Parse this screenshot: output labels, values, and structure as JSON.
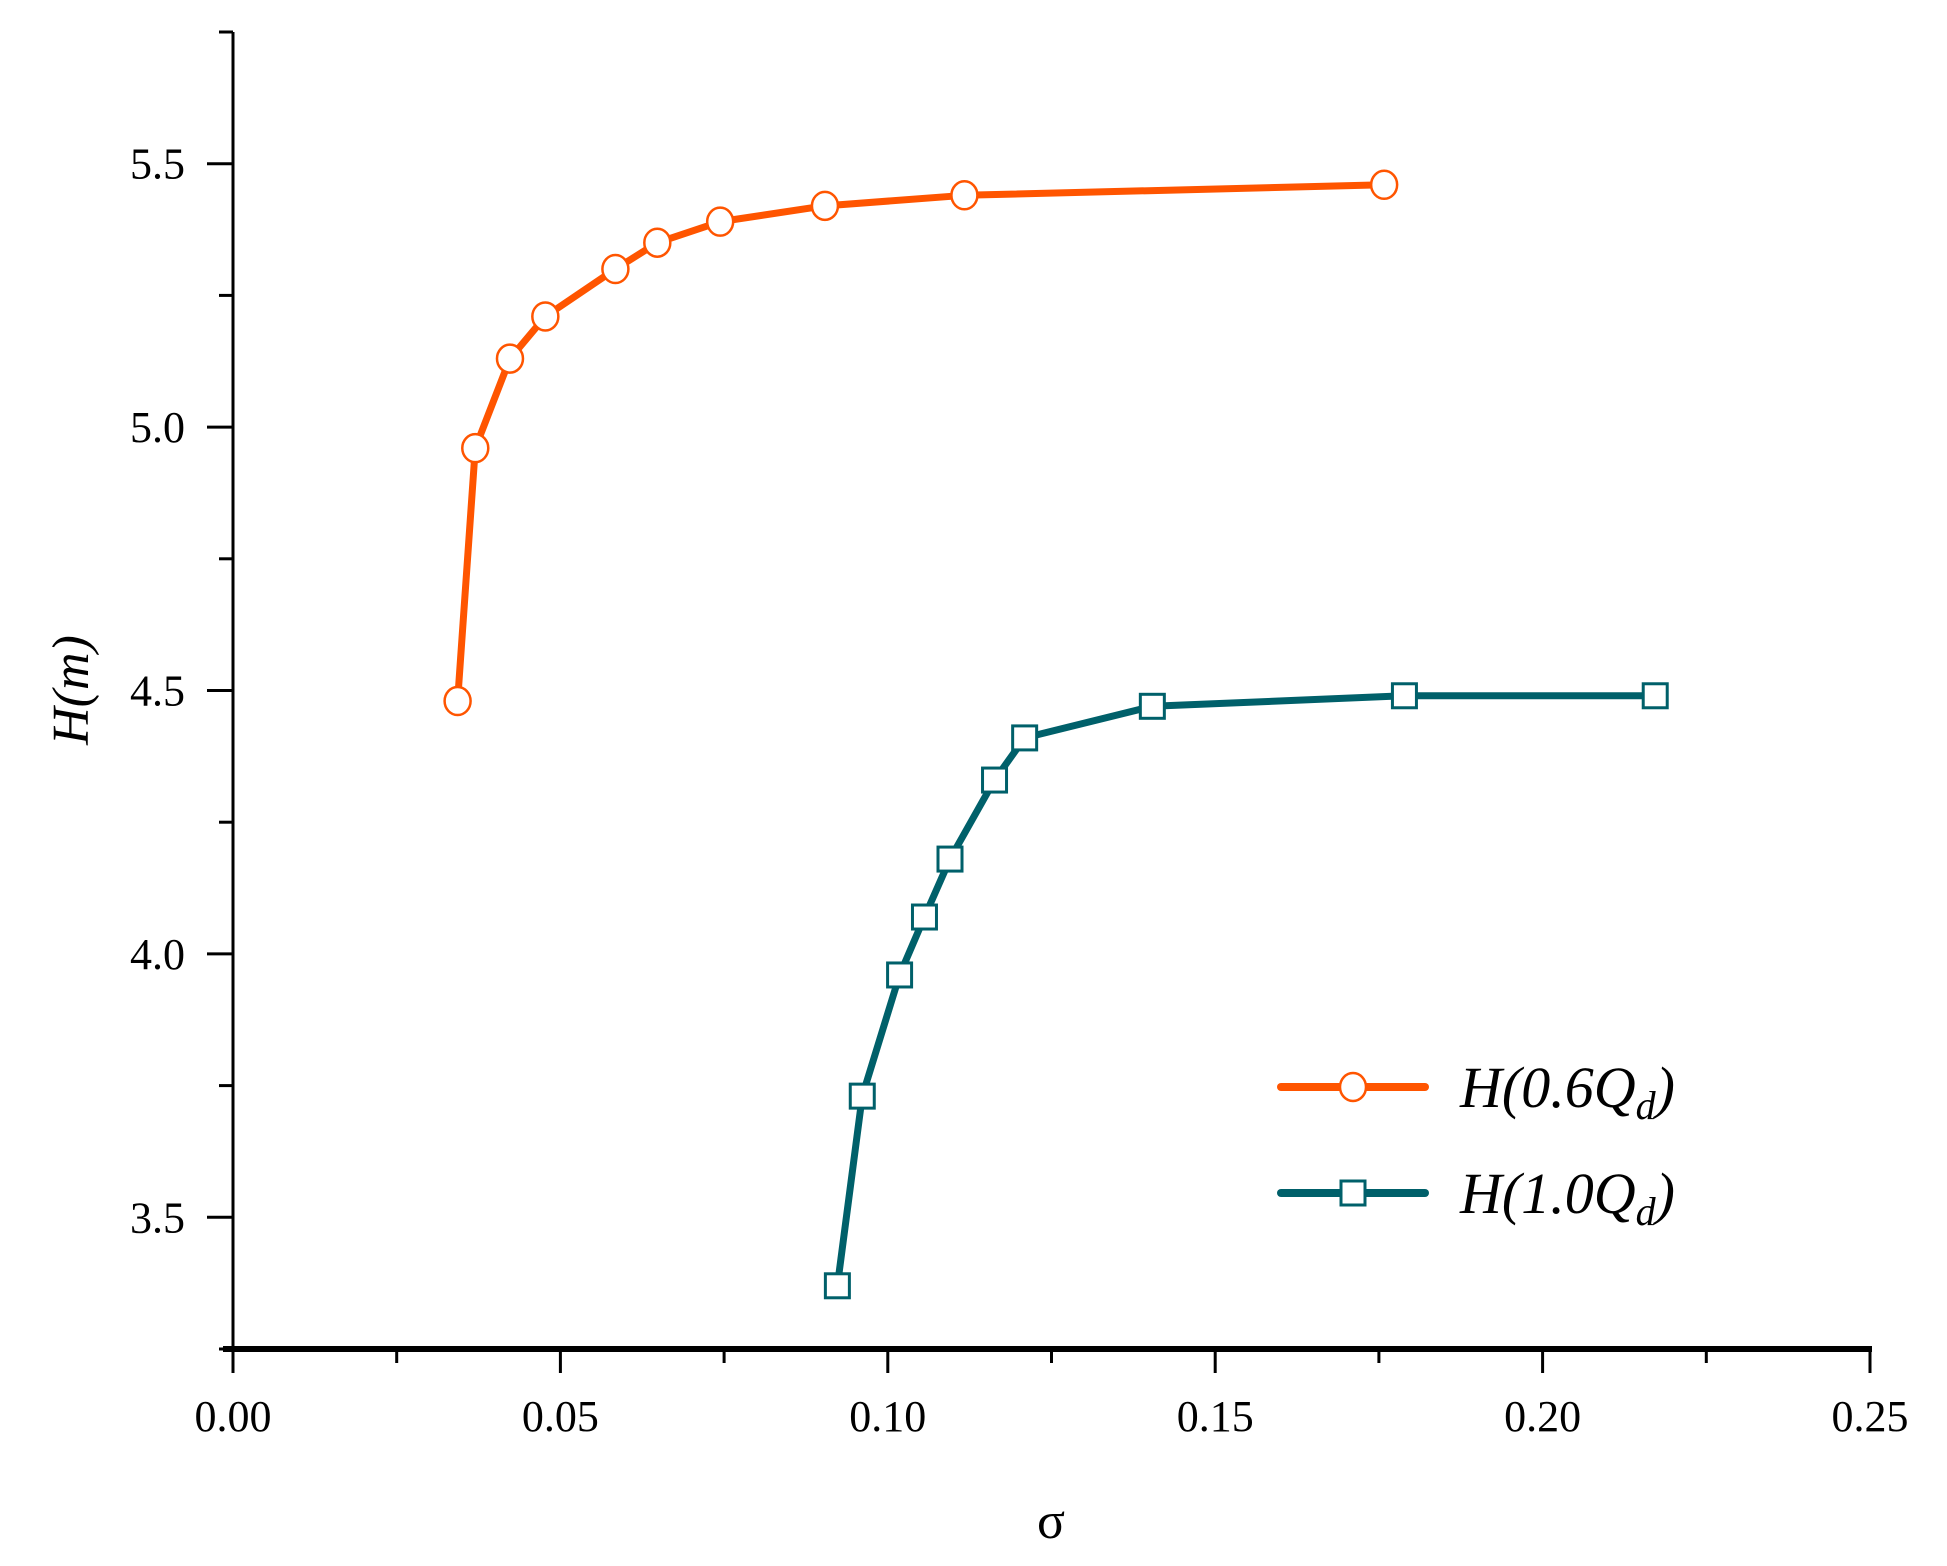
{
  "chart_data": {
    "type": "line",
    "title": "",
    "xlabel": "σ",
    "ylabel": "H(m)",
    "xlim": [
      0,
      0.25
    ],
    "ylim": [
      3.25,
      5.75
    ],
    "xticks": [
      "0.00",
      "0.05",
      "0.10",
      "0.15",
      "0.20",
      "0.25"
    ],
    "yticks": [
      "3.5",
      "4.0",
      "4.5",
      "5.0",
      "5.5"
    ],
    "grid": false,
    "legend_position": "bottom-right",
    "series": [
      {
        "name": "H(0.6Qd)",
        "color": "#ff5500",
        "marker": "open-circle",
        "x": [
          0.0343,
          0.037,
          0.0423,
          0.0477,
          0.0584,
          0.0648,
          0.0744,
          0.0904,
          0.1117,
          0.1758
        ],
        "y": [
          4.48,
          4.96,
          5.13,
          5.21,
          5.3,
          5.35,
          5.39,
          5.42,
          5.44,
          5.46
        ]
      },
      {
        "name": "H(1.0Qd)",
        "color": "#00606a",
        "marker": "open-square",
        "x": [
          0.0923,
          0.0961,
          0.1018,
          0.1056,
          0.1095,
          0.1163,
          0.1209,
          0.1404,
          0.1789,
          0.2172
        ],
        "y": [
          3.37,
          3.73,
          3.96,
          4.07,
          4.18,
          4.33,
          4.41,
          4.47,
          4.49,
          4.49
        ]
      }
    ]
  }
}
